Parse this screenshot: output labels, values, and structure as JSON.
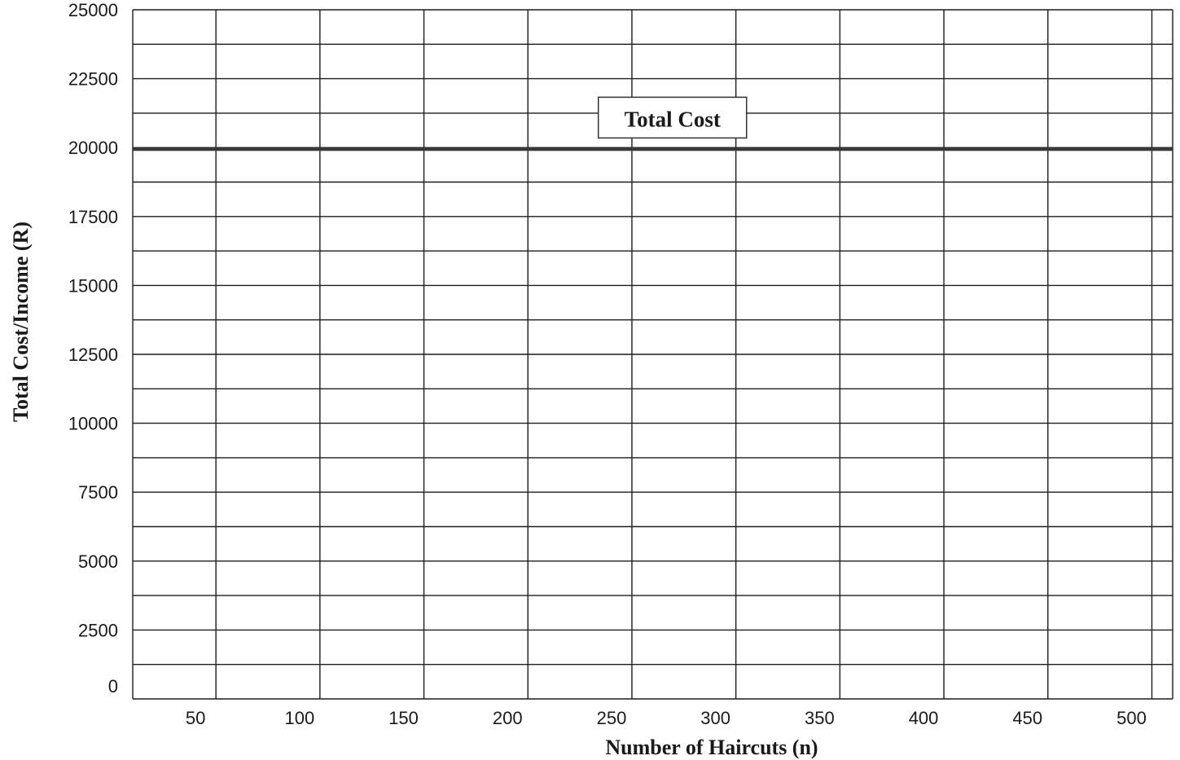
{
  "chart_data": {
    "type": "line",
    "xlabel": "Number of Haircuts (n)",
    "ylabel": "Total Cost/Income (R)",
    "x_ticks": [
      50,
      100,
      150,
      200,
      250,
      300,
      350,
      400,
      450,
      500
    ],
    "y_ticks": [
      0,
      2500,
      5000,
      7500,
      10000,
      12500,
      15000,
      17500,
      20000,
      22500,
      25000
    ],
    "xlim": [
      10,
      510
    ],
    "ylim": [
      0,
      25000
    ],
    "grid": true,
    "series": [
      {
        "name": "Total Cost",
        "x": [
          10,
          510
        ],
        "y": [
          20000,
          20000
        ],
        "color": "#3a3a3a"
      }
    ],
    "annotations": [
      {
        "text": "Total Cost",
        "x": 255,
        "y": 21000
      }
    ]
  }
}
